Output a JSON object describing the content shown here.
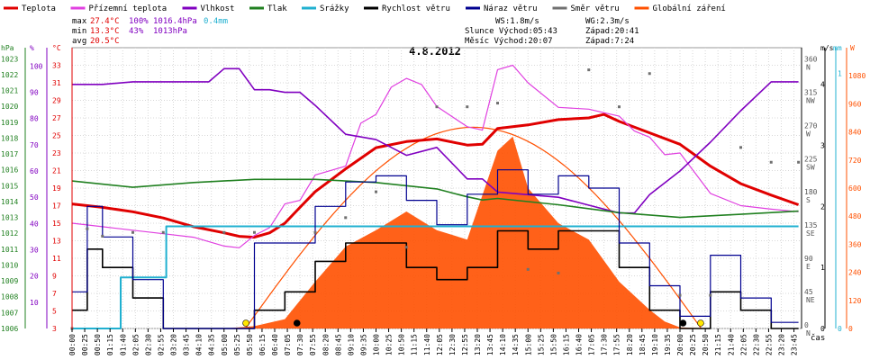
{
  "chart_data": {
    "type": "line",
    "title": "4.8.2012",
    "xlabel": "čas",
    "legend": [
      {
        "name": "Teplota",
        "color": "#e00000"
      },
      {
        "name": "Přízemní teplota",
        "color": "#e040e0"
      },
      {
        "name": "Vlhkost",
        "color": "#8000c0"
      },
      {
        "name": "Tlak",
        "color": "#208020"
      },
      {
        "name": "Srážky",
        "color": "#20b0d0"
      },
      {
        "name": "Rychlost větru",
        "color": "#000000"
      },
      {
        "name": "Náraz větru",
        "color": "#000090"
      },
      {
        "name": "Směr větru",
        "color": "#707070"
      },
      {
        "name": "Globální záření",
        "color": "#ff5000"
      }
    ],
    "stats": {
      "max_label": "max",
      "max_temp": "27.4°C",
      "max_hum": "100%",
      "max_pres": "1016.4hPa",
      "max_rain": "0.4mm",
      "min_label": "min",
      "min_temp": "13.3°C",
      "min_hum": "43%",
      "min_pres": "1013hPa",
      "avg_label": "avg",
      "avg_temp": "20.5°C"
    },
    "info": {
      "ws": "WS:1.8m/s",
      "wg": "WG:2.3m/s",
      "sun": "Slunce Východ:05:43",
      "sun_set": "Západ:20:41",
      "moon": "Měsíc  Východ:20:07",
      "moon_set": "Západ:7:24"
    },
    "axes": {
      "hpa_unit": "hPa",
      "hpa_ticks": [
        "1023",
        "1022",
        "1021",
        "1020",
        "1019",
        "1018",
        "1017",
        "1016",
        "1015",
        "1014",
        "1013",
        "1012",
        "1011",
        "1010",
        "1009",
        "1008",
        "1007",
        "1006"
      ],
      "pct_unit": "%",
      "pct_ticks": [
        "100",
        "90",
        "80",
        "70",
        "60",
        "50",
        "40",
        "30",
        "20",
        "10"
      ],
      "c_unit": "°C",
      "c_ticks": [
        "33",
        "31",
        "29",
        "27",
        "25",
        "23",
        "21",
        "19",
        "17",
        "15",
        "13",
        "11",
        "9",
        "7",
        "5",
        "3"
      ],
      "dir_ticks": [
        "360\nN",
        "315\nNW",
        "270\nW",
        "225\nSW",
        "180\nS",
        "135\nSE",
        "90\nE",
        "45\nNE",
        "0\nN"
      ],
      "ms_unit": "m/s",
      "ms_ticks": [
        "4",
        "3",
        "2",
        "1",
        "0"
      ],
      "mm_unit": "mm",
      "mm_ticks": [
        "1",
        "0"
      ],
      "w_unit": "W",
      "w_ticks": [
        "1080",
        "960",
        "840",
        "720",
        "600",
        "480",
        "360",
        "240",
        "120",
        "0"
      ],
      "time_ticks": [
        "00:00",
        "00:25",
        "00:50",
        "01:15",
        "01:40",
        "02:05",
        "02:30",
        "02:55",
        "03:20",
        "03:45",
        "04:10",
        "04:35",
        "05:00",
        "05:25",
        "05:50",
        "06:15",
        "06:40",
        "07:05",
        "07:30",
        "07:55",
        "08:20",
        "08:45",
        "09:10",
        "09:35",
        "10:00",
        "10:25",
        "10:50",
        "11:15",
        "11:40",
        "12:05",
        "12:30",
        "12:55",
        "13:20",
        "13:45",
        "14:10",
        "14:35",
        "15:00",
        "15:25",
        "15:50",
        "16:15",
        "16:40",
        "17:05",
        "17:30",
        "17:55",
        "18:20",
        "18:45",
        "19:10",
        "19:35",
        "20:00",
        "20:25",
        "20:50",
        "21:15",
        "21:40",
        "22:05",
        "22:30",
        "22:55",
        "23:20",
        "23:45"
      ]
    },
    "series": [
      {
        "name": "Teplota",
        "unit": "°C",
        "x_hours": [
          0,
          1,
          2,
          3,
          4,
          5,
          5.5,
          6,
          6.5,
          7,
          7.5,
          8,
          9,
          10,
          11,
          12,
          13,
          13.5,
          14,
          15,
          16,
          17,
          17.5,
          18,
          19,
          20,
          21,
          22,
          23,
          23.9
        ],
        "values": [
          17.2,
          16.8,
          16.3,
          15.6,
          14.6,
          13.9,
          13.5,
          13.4,
          13.9,
          15.0,
          16.8,
          18.6,
          21.2,
          23.6,
          24.3,
          24.6,
          23.9,
          24.0,
          25.8,
          26.2,
          26.8,
          27.0,
          27.4,
          26.6,
          25.3,
          24.0,
          21.5,
          19.5,
          18.2,
          17.1
        ]
      },
      {
        "name": "Přízemní teplota",
        "unit": "°C",
        "x_hours": [
          0,
          1,
          2,
          3,
          4,
          5,
          5.5,
          6,
          6.5,
          7,
          7.5,
          8,
          9,
          9.5,
          10,
          10.5,
          11,
          11.5,
          12,
          13,
          13.5,
          14,
          14.5,
          15,
          16,
          17,
          18,
          18.5,
          19,
          19.5,
          20,
          21,
          22,
          23,
          23.9
        ],
        "values": [
          15.0,
          14.6,
          14.2,
          13.8,
          13.4,
          12.4,
          12.2,
          13.6,
          14.5,
          17.2,
          17.6,
          20.5,
          21.5,
          26.4,
          27.4,
          30.5,
          31.5,
          30.8,
          28.3,
          26.0,
          25.6,
          32.5,
          33.0,
          31.0,
          28.2,
          28.0,
          27.2,
          25.5,
          24.8,
          22.8,
          23.0,
          18.4,
          17.0,
          16.6,
          16.3
        ]
      },
      {
        "name": "Vlhkost",
        "unit": "%",
        "x_hours": [
          0,
          1,
          2,
          3,
          4,
          4.5,
          5,
          5.5,
          6,
          6.5,
          7,
          7.5,
          8,
          9,
          10,
          11,
          12,
          13,
          13.5,
          14,
          15,
          16,
          17,
          18,
          18.5,
          19,
          20,
          21,
          22,
          23,
          23.9
        ],
        "values": [
          93,
          93,
          94,
          94,
          94,
          94,
          99,
          99,
          91,
          91,
          90,
          90,
          85,
          74,
          72,
          66,
          69,
          57,
          57,
          52,
          51,
          50,
          47,
          44,
          44,
          51,
          60,
          71,
          83,
          94,
          94
        ]
      },
      {
        "name": "Tlak",
        "unit": "hPa",
        "x_hours": [
          0,
          2,
          4,
          6,
          8,
          10,
          12,
          13,
          13.5,
          14,
          16,
          18,
          20,
          22,
          23.9
        ],
        "values": [
          1015.3,
          1014.9,
          1015.2,
          1015.4,
          1015.4,
          1015.2,
          1014.8,
          1014.3,
          1014.1,
          1014.2,
          1013.8,
          1013.3,
          1013.0,
          1013.2,
          1013.4
        ]
      },
      {
        "name": "Srážky",
        "unit": "mm",
        "x_hours": [
          0,
          1.3,
          1.6,
          2.9,
          3.1,
          23.9
        ],
        "values": [
          0,
          0,
          0.2,
          0.2,
          0.4,
          0.4
        ]
      },
      {
        "name": "Rychlost větru",
        "unit": "m/s",
        "x_hours": [
          0,
          0.5,
          1,
          2,
          3,
          4,
          5,
          6,
          7,
          8,
          9,
          10,
          11,
          12,
          13,
          14,
          15,
          16,
          17,
          18,
          19,
          20,
          21,
          22,
          23,
          23.9
        ],
        "values": [
          0.3,
          1.3,
          1.0,
          0.5,
          0,
          0,
          0,
          0.3,
          0.6,
          1.1,
          1.4,
          1.4,
          1.0,
          0.8,
          1.0,
          1.6,
          1.3,
          1.6,
          1.6,
          1.0,
          0.3,
          0.0,
          0.6,
          0.3,
          0.0,
          0.0
        ]
      },
      {
        "name": "Náraz větru",
        "unit": "m/s",
        "x_hours": [
          0,
          0.5,
          1,
          2,
          3,
          4,
          5,
          6,
          7,
          8,
          9,
          10,
          11,
          12,
          13,
          14,
          15,
          16,
          17,
          18,
          19,
          20,
          21,
          22,
          23,
          23.9
        ],
        "values": [
          0.6,
          2.0,
          1.5,
          0.8,
          0.0,
          0.0,
          0.0,
          1.4,
          1.4,
          2.0,
          2.4,
          2.5,
          2.1,
          1.7,
          2.2,
          2.6,
          2.2,
          2.5,
          2.3,
          1.4,
          0.7,
          0.2,
          1.2,
          0.5,
          0.1,
          0.1
        ]
      },
      {
        "name": "Směr větru",
        "unit": "°",
        "x_hours": [
          0,
          0.5,
          1,
          2,
          3,
          5,
          6,
          8,
          9,
          10,
          11,
          12,
          13,
          14,
          15,
          16,
          17,
          18,
          19,
          20,
          21,
          22,
          23,
          23.9
        ],
        "values": [
          0,
          135,
          125,
          130,
          130,
          130,
          130,
          130,
          150,
          185,
          110,
          300,
          300,
          305,
          80,
          75,
          350,
          300,
          345,
          45,
          45,
          245,
          225,
          225
        ]
      },
      {
        "name": "Globální záření",
        "unit": "W/m²",
        "x_hours": [
          0,
          5,
          6,
          7,
          8,
          9,
          10,
          11,
          12,
          13,
          14,
          14.5,
          15,
          16,
          17,
          18,
          19,
          19.5,
          20,
          21,
          23.9
        ],
        "values": [
          0,
          0,
          10,
          40,
          200,
          350,
          420,
          500,
          420,
          380,
          760,
          820,
          600,
          450,
          380,
          200,
          80,
          30,
          5,
          0,
          0
        ]
      }
    ]
  }
}
